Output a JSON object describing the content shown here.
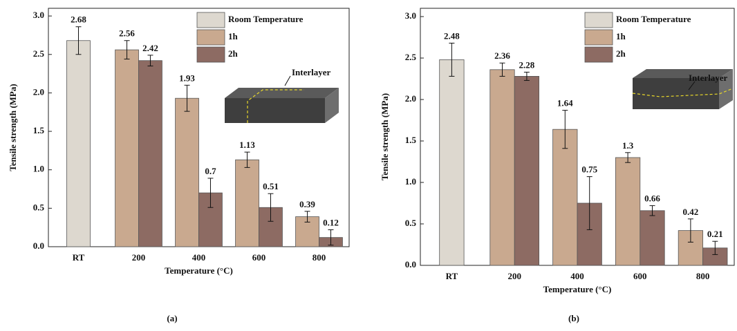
{
  "chart_data": [
    {
      "type": "bar",
      "caption": "(a)",
      "annotation": "Interlayer",
      "x_label": "Temperature (°C)",
      "y_label": "Tensile strength (MPa)",
      "categories": [
        "RT",
        "200",
        "400",
        "600",
        "800"
      ],
      "series": [
        {
          "name": "Room Temperature",
          "color": "#ddd8cf",
          "values": [
            2.68,
            null,
            null,
            null,
            null
          ],
          "errors": [
            0.18,
            null,
            null,
            null,
            null
          ]
        },
        {
          "name": "1h",
          "color": "#c9a98f",
          "values": [
            null,
            2.56,
            1.93,
            1.13,
            0.39
          ],
          "errors": [
            null,
            0.12,
            0.17,
            0.1,
            0.07
          ]
        },
        {
          "name": "2h",
          "color": "#8d6b63",
          "values": [
            null,
            2.42,
            0.7,
            0.51,
            0.12
          ],
          "errors": [
            null,
            0.07,
            0.19,
            0.18,
            0.1
          ]
        }
      ],
      "ylim": [
        0,
        3.1
      ],
      "yticks": [
        {
          "value": 0,
          "label": "0.0"
        },
        0.5,
        {
          "value": 1,
          "label": "1.0"
        },
        1.5,
        {
          "value": 2,
          "label": "2.0"
        },
        2.5,
        {
          "value": 3,
          "label": "3.0"
        }
      ],
      "legend": "upper right"
    },
    {
      "type": "bar",
      "caption": "(b)",
      "annotation": "Interlayer",
      "x_label": "Temperature (°C)",
      "y_label": "Tensile strength (MPa)",
      "categories": [
        "RT",
        "200",
        "400",
        "600",
        "800"
      ],
      "series": [
        {
          "name": "Room Temperature",
          "color": "#ddd8cf",
          "values": [
            2.48,
            null,
            null,
            null,
            null
          ],
          "errors": [
            0.2,
            null,
            null,
            null,
            null
          ]
        },
        {
          "name": "1h",
          "color": "#c9a98f",
          "values": [
            null,
            2.36,
            1.64,
            1.3,
            0.42
          ],
          "errors": [
            null,
            0.08,
            0.23,
            0.06,
            0.14
          ]
        },
        {
          "name": "2h",
          "color": "#8d6b63",
          "values": [
            null,
            2.28,
            0.75,
            0.66,
            0.21
          ],
          "errors": [
            null,
            0.05,
            0.32,
            0.06,
            0.08
          ]
        }
      ],
      "ylim": [
        0,
        3.1
      ],
      "yticks": [
        {
          "value": 0,
          "label": "0.0"
        },
        0.5,
        {
          "value": 1,
          "label": "1.0"
        },
        1.5,
        {
          "value": 2,
          "label": "2.0"
        },
        2.5,
        {
          "value": 3,
          "label": "3.0"
        }
      ],
      "legend": "upper right"
    }
  ]
}
